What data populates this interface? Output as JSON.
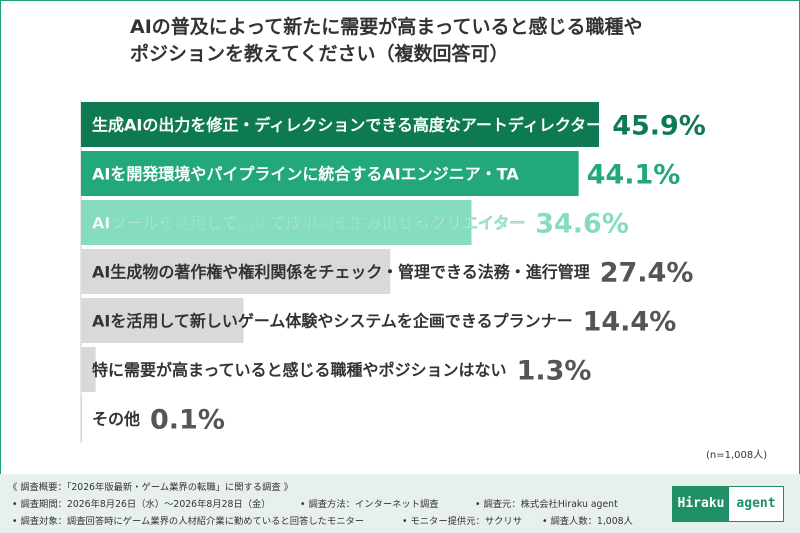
{
  "colors": {
    "bar_1": "#0e7a52",
    "bar_2": "#23a87a",
    "bar_3": "#86dcc0",
    "bar_other": "#d9d9d9",
    "pct_1": "#0e7a52",
    "pct_2": "#23a87a",
    "pct_3": "#86dcc0",
    "pct_other": "#555555",
    "brand": "#1f8f66"
  },
  "chart_data": {
    "type": "bar",
    "orientation": "horizontal",
    "title": "AIの普及によって新たに需要が高まっていると感じる職種やポジションを教えてください（複数回答可）",
    "title_lines": [
      "AIの普及によって新たに需要が高まっていると感じる職種や",
      "ポジションを教えてください（複数回答可）"
    ],
    "unit": "%",
    "categories": [
      "生成AIの出力を修正・ディレクションできる高度なアートディレクター",
      "AIを開発環境やパイプラインに統合するAIエンジニア・TA",
      "AIツールを活用して高速で成果物を生み出せるクリエイター",
      "AI生成物の著作権や権利関係をチェック・管理できる法務・進行管理",
      "AIを活用して新しいゲーム体験やシステムを企画できるプランナー",
      "特に需要が高まっていると感じる職種やポジションはない",
      "その他"
    ],
    "values": [
      45.9,
      44.1,
      34.6,
      27.4,
      14.4,
      1.3,
      0.1
    ],
    "value_labels": [
      "45.9%",
      "44.1%",
      "34.6%",
      "27.4%",
      "14.4%",
      "1.3%",
      "0.1%"
    ],
    "grid": false,
    "legend": "none"
  },
  "sample_note": "(n=1,008人)",
  "footer": {
    "heading": "《 調査概要：「2026年版最新・ゲーム業界の転職」に関する調査 》",
    "period": "• 調査期間：2026年8月26日（水）～2026年8月28日（金）",
    "method": "• 調査方法：インターネット調査",
    "organizer": "• 調査元：株式会社Hiraku agent",
    "target": "• 調査対象：調査回答時にゲーム業界の人材紹介業に勤めていると回答したモニター",
    "monitor": "• モニター提供元：サクリサ",
    "count": "• 調査人数：1,008人"
  },
  "logo": {
    "left": "Hiraku",
    "right": "agent"
  }
}
